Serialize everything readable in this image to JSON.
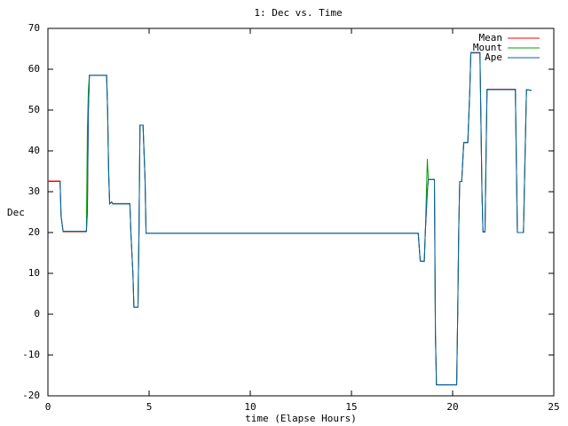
{
  "chart_data": {
    "type": "line",
    "title": "1: Dec vs. Time",
    "x_label": "time (Elapse Hours)",
    "y_label": "Dec",
    "xlim": [
      0,
      25
    ],
    "ylim": [
      -20,
      70
    ],
    "xticks": [
      0,
      5,
      10,
      15,
      20,
      25
    ],
    "yticks": [
      -20,
      -10,
      0,
      10,
      20,
      30,
      40,
      50,
      60,
      70
    ],
    "legend": "top-right",
    "x": [
      0,
      0.6,
      0.65,
      0.75,
      1.9,
      1.95,
      2.0,
      2.05,
      2.9,
      2.95,
      3.0,
      3.05,
      3.15,
      3.2,
      4.05,
      4.1,
      4.2,
      4.25,
      4.45,
      4.5,
      4.55,
      4.7,
      4.8,
      4.85,
      18.3,
      18.4,
      18.6,
      18.65,
      18.75,
      18.8,
      19.1,
      19.15,
      19.2,
      20.2,
      20.25,
      20.3,
      20.35,
      20.45,
      20.55,
      20.75,
      20.85,
      20.9,
      21.35,
      21.45,
      21.5,
      21.6,
      21.7,
      23.1,
      23.2,
      23.5,
      23.65,
      23.9
    ],
    "series": [
      {
        "name": "Mean",
        "color": "#ff0000",
        "values": [
          32.6,
          32.6,
          24,
          20.2,
          20.2,
          25,
          50,
          58.5,
          58.5,
          50,
          35,
          27.1,
          27.5,
          27.1,
          27.1,
          20,
          10,
          1.7,
          1.7,
          20,
          46.3,
          46.3,
          33,
          19.8,
          19.8,
          13,
          12.9,
          20,
          30,
          33,
          33,
          -5,
          -17.3,
          -17.3,
          0,
          20,
          32.5,
          32.5,
          42.1,
          42.1,
          55,
          64.1,
          64.1,
          30,
          20.1,
          20.1,
          55.1,
          55.1,
          20,
          20,
          55,
          54.8
        ]
      },
      {
        "name": "Mount",
        "color": "#00a000",
        "values": [
          32.5,
          32.5,
          24,
          20.3,
          20.3,
          45,
          55,
          58.5,
          58.5,
          50,
          35,
          27,
          27.5,
          27,
          27,
          20,
          10,
          1.7,
          1.7,
          20,
          46.3,
          46.3,
          33,
          19.8,
          19.8,
          13,
          13,
          20,
          38,
          33,
          33,
          -5,
          -17.3,
          -17.3,
          0,
          20,
          32.5,
          32.5,
          42,
          42,
          55,
          64,
          64,
          30,
          20.2,
          20.2,
          55,
          55,
          20,
          20,
          55,
          54.8
        ]
      },
      {
        "name": "Ape",
        "color": "#0060ad",
        "values": [
          32.5,
          32.5,
          24,
          20.3,
          20.3,
          25,
          50,
          58.5,
          58.5,
          50,
          35,
          27,
          27.5,
          27,
          27,
          20,
          10,
          1.7,
          1.7,
          20,
          46.3,
          46.3,
          33,
          19.8,
          19.8,
          13,
          13,
          20,
          30,
          33,
          33,
          -5,
          -17.3,
          -17.3,
          0,
          20,
          32.5,
          32.5,
          42,
          42,
          55,
          64,
          64,
          30,
          20.2,
          20.2,
          55,
          55,
          20,
          20,
          55,
          54.8
        ]
      }
    ]
  }
}
